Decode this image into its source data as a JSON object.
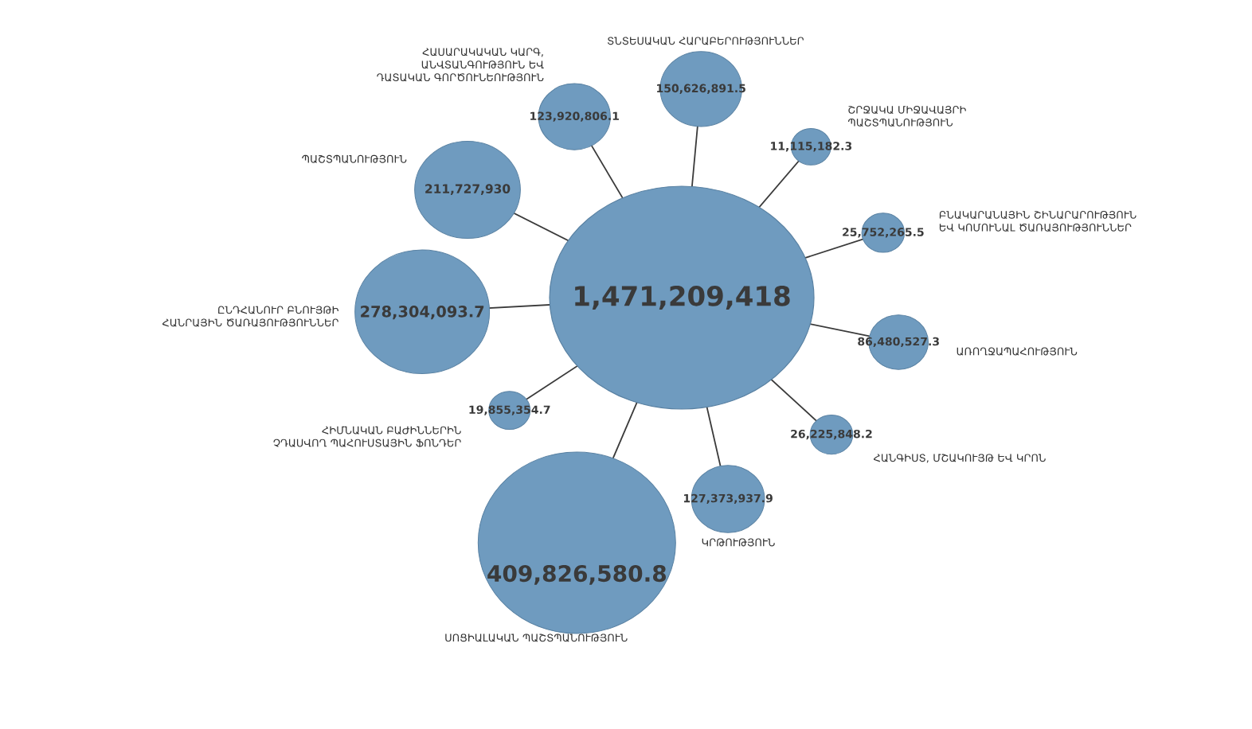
{
  "chart_data": {
    "type": "other",
    "categories": [
      "ՀԱՍԱՐԱԿԱԿԱՆ ԿԱՐԳ, ԱՆՎՏԱՆԳՈՒԹՅՈՒՆ ԵՎ ԴԱՏԱԿԱՆ ԳՈՐԾՈՒՆԵՈՒԹՅՈՒՆ",
      "ՏՆՏԵՍԱԿԱՆ ՀԱՐԱԲԵՐՈՒԹՅՈՒՆՆԵՐ",
      "ՇՐՋԱԿԱ ՄԻՋԱՎԱՅՐԻ ՊԱՇՏՊԱՆՈՒԹՅՈՒՆ",
      "ԲՆԱԿԱՐԱՆԱՅԻՆ ՇԻՆԱՐԱՐՈՒԹՅՈՒՆ ԵՎ ԿՈՄՈՒՆԱԼ ԾԱՌԱՅՈՒԹՅՈՒՆՆԵՐ",
      "ԱՌՈՂՋԱՊԱՀՈՒԹՅՈՒՆ",
      "ՀԱՆԳԻՍՏ, ՄՇԱԿՈՒՅԹ ԵՎ ԿՐՈՆ",
      "ԿՐԹՈՒԹՅՈՒՆ",
      "ՍՈՑԻԱԼԱԿԱՆ ՊԱՇՏՊԱՆՈՒԹՅՈՒՆ",
      "ՀԻՄՆԱԿԱՆ ԲԱԺԻՆՆԵՐԻՆ ՉԴԱՍՎՈՂ ՊԱՀՈՒՍՏԱՅԻՆ ՖՈՆԴԵՐ",
      "ԸՆԴՀԱՆՈՒՐ ԲՆՈՒՅԹԻ ՀԱՆՐԱՅԻՆ ԾԱՌԱՅՈՒԹՅՈՒՆՆԵՐ",
      "ՊԱՇՏՊԱՆՈՒԹՅՈՒՆ"
    ],
    "values": [
      123920806.1,
      150626891.5,
      11115182.3,
      25752265.5,
      86480527.3,
      26225848.2,
      127373937.9,
      409826580.8,
      19855354.7,
      278304093.7,
      211727930
    ],
    "value_labels": [
      "123,920,806.1",
      "150,626,891.5",
      "11,115,182.3",
      "25,752,265.5",
      "86,480,527.3",
      "26,225,848.2",
      "127,373,937.9",
      "409,826,580.8",
      "19,855,354.7",
      "278,304,093.7",
      "211,727,930"
    ],
    "totals": [
      "1,471,209,418"
    ],
    "color": "#6f9bbf"
  }
}
